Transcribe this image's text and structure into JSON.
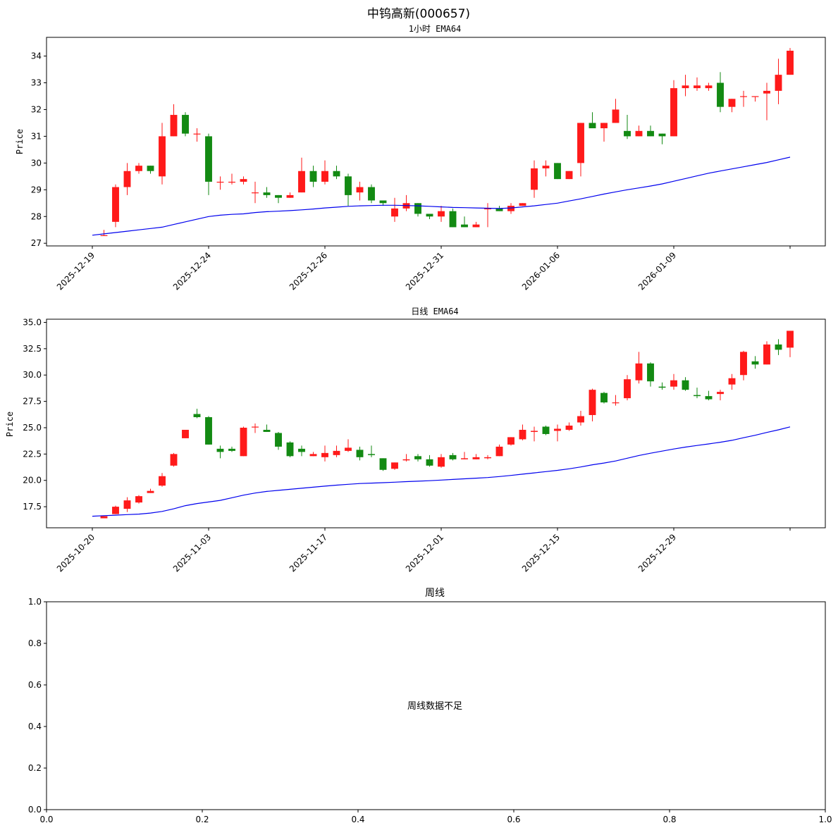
{
  "figure": {
    "suptitle": "中钨高新(000657)"
  },
  "colors": {
    "up": "#ff1a1a",
    "down": "#138a13",
    "ema": "#0000ee"
  },
  "chart_data": [
    {
      "type": "candlestick",
      "title": "1小时 EMA64",
      "ylabel": "Price",
      "ylim": [
        26.9,
        34.7
      ],
      "yticks": [
        27,
        28,
        29,
        30,
        31,
        32,
        33,
        34
      ],
      "xlabels": [
        "2025-12-19",
        "2025-12-24",
        "2025-12-26",
        "2025-12-31",
        "2026-01-06",
        "2026-01-09",
        ""
      ],
      "xlabel_index": [
        0,
        10,
        20,
        30,
        40,
        50,
        60
      ],
      "candles": [
        [
          27.3,
          27.3,
          27.5,
          27.3
        ],
        [
          27.8,
          29.1,
          29.2,
          27.6
        ],
        [
          29.1,
          29.7,
          30.0,
          28.8
        ],
        [
          29.7,
          29.9,
          30.0,
          29.6
        ],
        [
          29.9,
          29.7,
          29.9,
          29.6
        ],
        [
          29.5,
          31.0,
          31.5,
          29.2
        ],
        [
          31.0,
          31.8,
          32.2,
          31.0
        ],
        [
          31.8,
          31.1,
          31.9,
          31.0
        ],
        [
          31.1,
          31.1,
          31.3,
          30.8
        ],
        [
          31.0,
          29.3,
          31.1,
          28.8
        ],
        [
          29.3,
          29.3,
          29.5,
          29.0
        ],
        [
          29.3,
          29.3,
          29.6,
          29.2
        ],
        [
          29.3,
          29.4,
          29.5,
          29.2
        ],
        [
          28.9,
          28.9,
          29.3,
          28.5
        ],
        [
          28.9,
          28.8,
          29.1,
          28.7
        ],
        [
          28.8,
          28.7,
          28.8,
          28.5
        ],
        [
          28.7,
          28.8,
          28.9,
          28.7
        ],
        [
          28.9,
          29.7,
          30.2,
          28.9
        ],
        [
          29.7,
          29.3,
          29.9,
          29.1
        ],
        [
          29.3,
          29.7,
          30.1,
          29.2
        ],
        [
          29.7,
          29.5,
          29.9,
          29.4
        ],
        [
          29.5,
          28.8,
          29.6,
          28.4
        ],
        [
          28.9,
          29.1,
          29.3,
          28.6
        ],
        [
          29.1,
          28.6,
          29.2,
          28.5
        ],
        [
          28.6,
          28.5,
          28.6,
          28.4
        ],
        [
          28.0,
          28.3,
          28.7,
          27.8
        ],
        [
          28.3,
          28.5,
          28.8,
          28.2
        ],
        [
          28.5,
          28.1,
          28.5,
          28.0
        ],
        [
          28.1,
          28.0,
          28.1,
          27.9
        ],
        [
          28.0,
          28.2,
          28.4,
          27.8
        ],
        [
          28.2,
          27.6,
          28.3,
          27.6
        ],
        [
          27.7,
          27.6,
          28.0,
          27.6
        ],
        [
          27.6,
          27.7,
          27.8,
          27.6
        ],
        [
          28.3,
          28.3,
          28.5,
          27.6
        ],
        [
          28.3,
          28.2,
          28.4,
          28.2
        ],
        [
          28.2,
          28.4,
          28.5,
          28.1
        ],
        [
          28.4,
          28.5,
          28.5,
          28.4
        ],
        [
          29.0,
          29.8,
          30.1,
          28.7
        ],
        [
          29.8,
          29.9,
          30.1,
          29.5
        ],
        [
          30.0,
          29.4,
          30.0,
          29.4
        ],
        [
          29.4,
          29.7,
          29.7,
          29.4
        ],
        [
          30.0,
          31.5,
          31.5,
          29.5
        ],
        [
          31.5,
          31.3,
          31.9,
          31.3
        ],
        [
          31.3,
          31.5,
          31.5,
          30.8
        ],
        [
          31.5,
          32.0,
          32.4,
          31.5
        ],
        [
          31.2,
          31.0,
          31.8,
          30.9
        ],
        [
          31.0,
          31.2,
          31.4,
          31.0
        ],
        [
          31.2,
          31.0,
          31.4,
          31.0
        ],
        [
          31.1,
          31.0,
          31.1,
          30.7
        ],
        [
          31.0,
          32.8,
          33.1,
          31.0
        ],
        [
          32.8,
          32.9,
          33.3,
          32.5
        ],
        [
          32.8,
          32.9,
          33.2,
          32.7
        ],
        [
          32.8,
          32.9,
          33.0,
          32.7
        ],
        [
          33.0,
          32.1,
          33.4,
          31.9
        ],
        [
          32.1,
          32.4,
          32.4,
          31.9
        ],
        [
          32.5,
          32.5,
          32.7,
          32.1
        ],
        [
          32.5,
          32.5,
          32.5,
          32.3
        ],
        [
          32.6,
          32.7,
          33.0,
          31.6
        ],
        [
          32.7,
          33.3,
          33.9,
          32.2
        ],
        [
          33.3,
          34.2,
          34.3,
          33.3
        ]
      ],
      "ema": [
        27.3,
        27.35,
        27.4,
        27.45,
        27.5,
        27.55,
        27.6,
        27.7,
        27.8,
        27.9,
        28.0,
        28.05,
        28.08,
        28.1,
        28.15,
        28.18,
        28.2,
        28.22,
        28.25,
        28.28,
        28.32,
        28.35,
        28.38,
        28.4,
        28.41,
        28.42,
        28.42,
        28.41,
        28.4,
        28.38,
        28.36,
        28.34,
        28.33,
        28.32,
        28.31,
        28.3,
        28.32,
        28.36,
        28.4,
        28.45,
        28.5,
        28.58,
        28.66,
        28.75,
        28.84,
        28.92,
        29.0,
        29.07,
        29.14,
        29.22,
        29.32,
        29.42,
        29.52,
        29.62,
        29.7,
        29.78,
        29.86,
        29.94,
        30.02,
        30.12,
        30.22
      ]
    },
    {
      "type": "candlestick",
      "title": "日线 EMA64",
      "ylabel": "Price",
      "ylim": [
        15.5,
        35.3
      ],
      "yticks": [
        17.5,
        20.0,
        22.5,
        25.0,
        27.5,
        30.0,
        32.5,
        35.0
      ],
      "yticklabels": [
        "17.5",
        "20.0",
        "22.5",
        "25.0",
        "27.5",
        "30.0",
        "32.5",
        "35.0"
      ],
      "xlabels": [
        "2025-10-20",
        "2025-11-03",
        "2025-11-17",
        "2025-12-01",
        "2025-12-15",
        "2025-12-29",
        ""
      ],
      "xlabel_index": [
        0,
        10,
        20,
        30,
        40,
        50,
        60
      ],
      "candles": [
        [
          16.4,
          16.6,
          16.6,
          16.4
        ],
        [
          16.8,
          17.5,
          17.6,
          16.8
        ],
        [
          17.3,
          18.1,
          18.4,
          17.0
        ],
        [
          17.9,
          18.5,
          18.6,
          17.8
        ],
        [
          18.8,
          19.0,
          19.2,
          18.8
        ],
        [
          19.5,
          20.4,
          20.7,
          19.4
        ],
        [
          21.4,
          22.5,
          22.6,
          21.3
        ],
        [
          24.0,
          24.8,
          24.8,
          24.0
        ],
        [
          26.3,
          26.0,
          26.8,
          25.9
        ],
        [
          26.0,
          23.4,
          26.1,
          23.4
        ],
        [
          23.0,
          22.7,
          23.3,
          22.1
        ],
        [
          23.0,
          22.8,
          23.2,
          22.7
        ],
        [
          22.3,
          25.0,
          25.1,
          22.3
        ],
        [
          25.1,
          25.1,
          25.4,
          24.5
        ],
        [
          24.8,
          24.6,
          25.3,
          24.6
        ],
        [
          24.5,
          23.2,
          24.6,
          22.9
        ],
        [
          23.6,
          22.3,
          23.7,
          22.2
        ],
        [
          23.0,
          22.7,
          23.3,
          22.3
        ],
        [
          22.3,
          22.5,
          22.7,
          22.3
        ],
        [
          22.2,
          22.6,
          23.3,
          21.8
        ],
        [
          22.4,
          22.8,
          23.3,
          22.2
        ],
        [
          22.8,
          23.1,
          23.9,
          22.7
        ],
        [
          22.9,
          22.2,
          23.2,
          21.9
        ],
        [
          22.5,
          22.4,
          23.3,
          22.2
        ],
        [
          22.1,
          21.0,
          22.1,
          20.9
        ],
        [
          21.1,
          21.7,
          21.7,
          21.0
        ],
        [
          21.9,
          22.0,
          22.5,
          21.8
        ],
        [
          22.3,
          22.0,
          22.5,
          21.8
        ],
        [
          22.0,
          21.4,
          22.4,
          21.3
        ],
        [
          21.3,
          22.2,
          22.5,
          21.2
        ],
        [
          22.4,
          22.0,
          22.6,
          21.9
        ],
        [
          22.0,
          22.1,
          22.7,
          22.0
        ],
        [
          22.0,
          22.2,
          22.5,
          22.0
        ],
        [
          22.1,
          22.2,
          22.4,
          22.0
        ],
        [
          22.3,
          23.2,
          23.4,
          22.3
        ],
        [
          23.4,
          24.1,
          24.1,
          23.3
        ],
        [
          23.9,
          24.8,
          25.3,
          23.8
        ],
        [
          24.6,
          24.7,
          25.1,
          23.7
        ],
        [
          25.1,
          24.4,
          25.2,
          24.3
        ],
        [
          24.7,
          24.9,
          25.3,
          23.7
        ],
        [
          24.8,
          25.2,
          25.5,
          24.7
        ],
        [
          25.5,
          26.1,
          26.6,
          25.2
        ],
        [
          26.2,
          28.6,
          28.7,
          25.6
        ],
        [
          28.3,
          27.4,
          28.4,
          27.3
        ],
        [
          27.4,
          27.4,
          28.1,
          27.1
        ],
        [
          27.8,
          29.6,
          30.0,
          27.6
        ],
        [
          29.5,
          31.1,
          32.2,
          29.2
        ],
        [
          31.1,
          29.4,
          31.2,
          28.9
        ],
        [
          28.9,
          28.8,
          29.3,
          28.6
        ],
        [
          28.9,
          29.5,
          30.1,
          28.6
        ],
        [
          29.5,
          28.6,
          29.8,
          28.5
        ],
        [
          28.1,
          28.0,
          28.8,
          27.8
        ],
        [
          28.0,
          27.7,
          28.5,
          27.6
        ],
        [
          28.2,
          28.4,
          28.6,
          27.6
        ],
        [
          29.1,
          29.7,
          30.1,
          28.6
        ],
        [
          30.0,
          32.2,
          32.3,
          29.5
        ],
        [
          31.3,
          31.0,
          31.8,
          30.6
        ],
        [
          31.0,
          32.9,
          33.2,
          31.0
        ],
        [
          32.9,
          32.4,
          33.4,
          31.9
        ],
        [
          32.6,
          34.2,
          34.2,
          31.7
        ]
      ],
      "ema": [
        16.6,
        16.65,
        16.7,
        16.75,
        16.8,
        16.9,
        17.05,
        17.3,
        17.6,
        17.8,
        17.95,
        18.1,
        18.35,
        18.6,
        18.8,
        18.95,
        19.05,
        19.15,
        19.25,
        19.35,
        19.45,
        19.55,
        19.63,
        19.7,
        19.74,
        19.78,
        19.83,
        19.88,
        19.92,
        19.97,
        20.03,
        20.09,
        20.15,
        20.21,
        20.27,
        20.36,
        20.47,
        20.59,
        20.71,
        20.83,
        20.95,
        21.1,
        21.27,
        21.48,
        21.65,
        21.84,
        22.1,
        22.36,
        22.58,
        22.78,
        22.98,
        23.16,
        23.31,
        23.46,
        23.62,
        23.8,
        24.05,
        24.28,
        24.55,
        24.8,
        25.08
      ]
    },
    {
      "type": "empty",
      "title": "周线",
      "message": "周线数据不足",
      "xlim": [
        0.0,
        1.0
      ],
      "ylim": [
        0.0,
        1.0
      ],
      "xticklabels": [
        "0.0",
        "0.2",
        "0.4",
        "0.6",
        "0.8",
        "1.0"
      ],
      "yticklabels": [
        "0.0",
        "0.2",
        "0.4",
        "0.6",
        "0.8",
        "1.0"
      ]
    }
  ]
}
